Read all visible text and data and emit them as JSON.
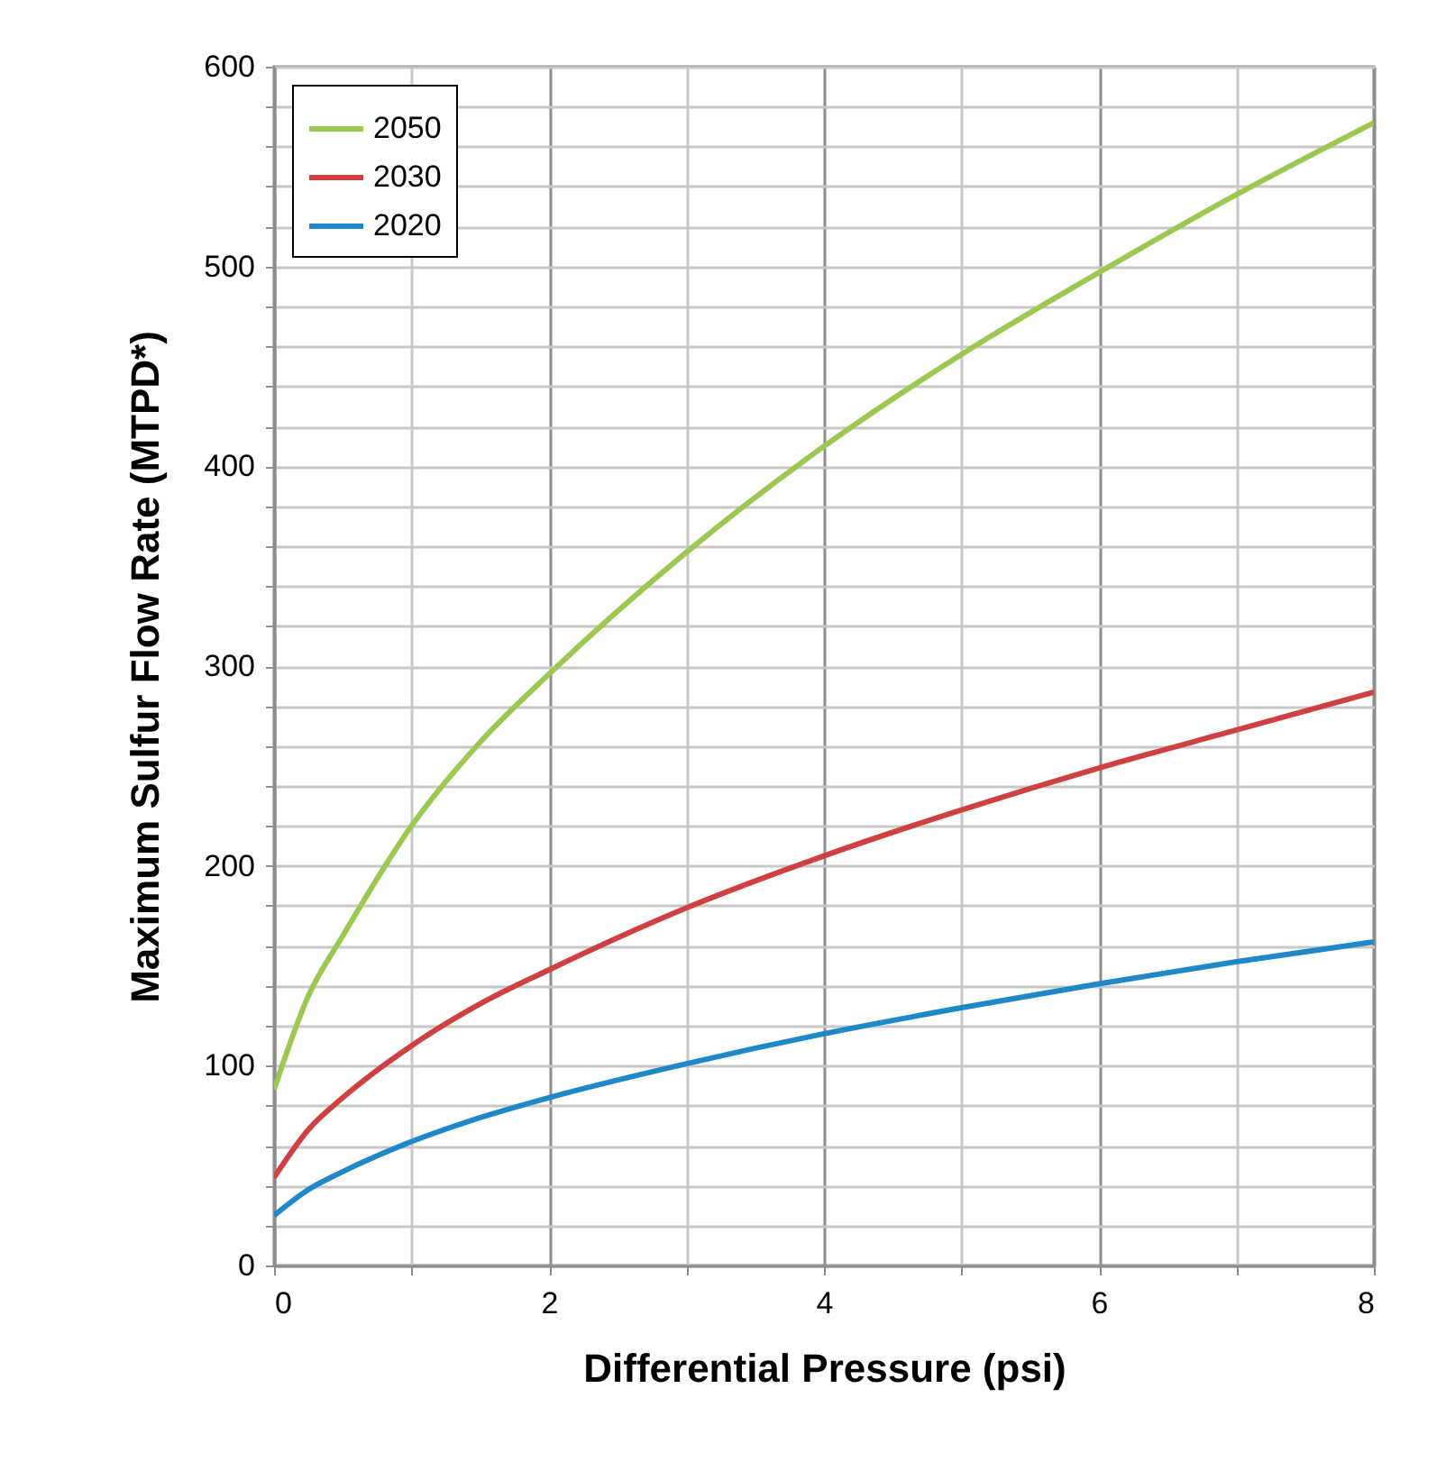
{
  "chart_data": {
    "type": "line",
    "xlabel": "Differential Pressure (psi)",
    "ylabel": "Maximum Sulfur Flow Rate (MTPD*)",
    "x": [
      0,
      0.25,
      0.5,
      1,
      1.5,
      2,
      3,
      4,
      5,
      6,
      7,
      8
    ],
    "series": [
      {
        "name": "2050",
        "color": "#9bc850",
        "values": [
          88,
          135,
          165,
          220,
          262,
          296,
          357,
          410,
          456,
          497,
          536,
          572
        ]
      },
      {
        "name": "2030",
        "color": "#d04040",
        "values": [
          44,
          68,
          84,
          110,
          131,
          148,
          179,
          205,
          228,
          249,
          268,
          287
        ]
      },
      {
        "name": "2020",
        "color": "#1f88c8",
        "values": [
          25,
          38,
          47,
          62,
          74,
          84,
          101,
          116,
          129,
          141,
          152,
          162
        ]
      }
    ],
    "xlim": [
      0,
      8
    ],
    "ylim": [
      0,
      600
    ],
    "xticks": [
      0,
      {
        "value": 1,
        "label": null
      },
      2,
      {
        "value": 3,
        "label": null
      },
      4,
      {
        "value": 5,
        "label": null
      },
      6,
      {
        "value": 7,
        "label": null
      },
      8
    ],
    "yticks": [
      0,
      {
        "value": 20,
        "label": null
      },
      {
        "value": 40,
        "label": null
      },
      {
        "value": 60,
        "label": null
      },
      {
        "value": 80,
        "label": null
      },
      100,
      {
        "value": 120,
        "label": null
      },
      {
        "value": 140,
        "label": null
      },
      {
        "value": 160,
        "label": null
      },
      {
        "value": 180,
        "label": null
      },
      200,
      {
        "value": 220,
        "label": null
      },
      {
        "value": 240,
        "label": null
      },
      {
        "value": 260,
        "label": null
      },
      {
        "value": 280,
        "label": null
      },
      300,
      {
        "value": 320,
        "label": null
      },
      {
        "value": 340,
        "label": null
      },
      {
        "value": 360,
        "label": null
      },
      {
        "value": 380,
        "label": null
      },
      400,
      {
        "value": 420,
        "label": null
      },
      {
        "value": 440,
        "label": null
      },
      {
        "value": 460,
        "label": null
      },
      {
        "value": 480,
        "label": null
      },
      500,
      {
        "value": 520,
        "label": null
      },
      {
        "value": 540,
        "label": null
      },
      {
        "value": 560,
        "label": null
      },
      {
        "value": 580,
        "label": null
      },
      600
    ],
    "grid": true,
    "legend": "top left",
    "marker": "none",
    "line_style": "solid"
  }
}
